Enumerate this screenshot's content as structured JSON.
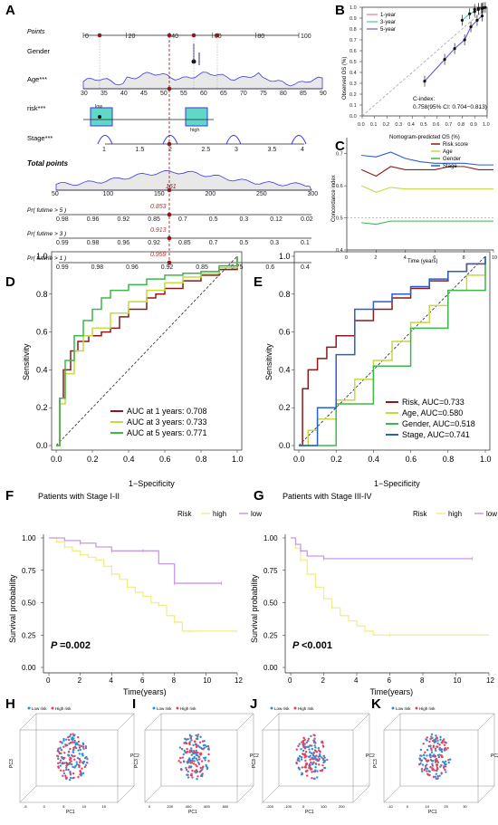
{
  "colors": {
    "red": "#8b1a1a",
    "yellow": "#c8d840",
    "green": "#3cb84a",
    "blue": "#2b5fc8",
    "cyan": "#40c8c0",
    "pink": "#e87a8a",
    "lightyellow": "#f0ee8a",
    "lilac": "#c79ae6",
    "teal": "#5fd8c8",
    "navy": "#2a2a8a"
  },
  "panel_labels": {
    "a": "A",
    "b": "B",
    "c": "C",
    "d": "D",
    "e": "E",
    "f": "F",
    "g": "G",
    "h": "H",
    "i": "I",
    "j": "J",
    "k": "K"
  },
  "chart_data": [
    {
      "panel": "A",
      "type": "table",
      "rows": [
        {
          "label": "Points",
          "ticks": [
            "0",
            "20",
            "40",
            "60",
            "80",
            "100"
          ]
        },
        {
          "label": "Gender",
          "ticks": []
        },
        {
          "label": "Age***",
          "ticks": [
            "30",
            "35",
            "40",
            "45",
            "50",
            "55",
            "60",
            "65",
            "70",
            "75",
            "80",
            "85",
            "90"
          ]
        },
        {
          "label": "risk***",
          "ticks": [
            "low",
            "high"
          ]
        },
        {
          "label": "Stage***",
          "ticks": [
            "1",
            "1.5",
            "2",
            "2.5",
            "3",
            "3.5",
            "4"
          ]
        },
        {
          "label": "Total points",
          "ticks": [
            "50",
            "100",
            "150",
            "200",
            "250",
            "300"
          ]
        },
        {
          "label": "Pr( futime > 5 )",
          "ticks": [
            "0.98",
            "0.96",
            "0.92",
            "0.85",
            "0.7",
            "0.5",
            "0.3",
            "0.12",
            "0.02"
          ]
        },
        {
          "label": "Pr( futime > 3 )",
          "ticks": [
            "0.99",
            "0.98",
            "0.96",
            "0.92",
            "0.85",
            "0.7",
            "0.5",
            "0.3",
            "0.1"
          ]
        },
        {
          "label": "Pr( futime > 1 )",
          "ticks": [
            "0.99",
            "0.98",
            "0.96",
            "0.92",
            "0.85",
            "0.75",
            "0.6",
            "0.4"
          ]
        }
      ],
      "total_value": "161",
      "pred": [
        "0.853",
        "0.913",
        "0.959"
      ]
    },
    {
      "panel": "B",
      "type": "line",
      "xlabel": "Nomogram-predicted OS (%)",
      "ylabel": "Observed OS (%)",
      "xlim": [
        0,
        1
      ],
      "ylim": [
        0,
        1
      ],
      "xticks": [
        "0.0",
        "0.1",
        "0.2",
        "0.3",
        "0.4",
        "0.5",
        "0.6",
        "0.7",
        "0.8",
        "0.9",
        "1.0"
      ],
      "yticks": [
        "0.0",
        "0.1",
        "0.2",
        "0.3",
        "0.4",
        "0.5",
        "0.6",
        "0.7",
        "0.8",
        "0.9",
        "1.0"
      ],
      "legend": [
        "1-year",
        "3-year",
        "5-year"
      ],
      "cindex_title": "C-index:",
      "cindex": "0.758(95% CI: 0.704−0.813)",
      "series": [
        {
          "name": "1-year",
          "x": [
            0.9,
            0.93,
            0.955,
            0.97,
            0.985
          ],
          "y": [
            0.98,
            0.99,
            0.99,
            0.995,
            0.998
          ]
        },
        {
          "name": "3-year",
          "x": [
            0.8,
            0.86,
            0.9,
            0.93,
            0.96
          ],
          "y": [
            0.88,
            0.94,
            0.96,
            0.98,
            0.99
          ]
        },
        {
          "name": "5-year",
          "x": [
            0.5,
            0.66,
            0.74,
            0.82,
            0.87,
            0.92,
            0.96
          ],
          "y": [
            0.32,
            0.52,
            0.62,
            0.7,
            0.82,
            0.88,
            0.92
          ]
        }
      ]
    },
    {
      "panel": "C",
      "type": "line",
      "xlabel": "Time (years)",
      "ylabel": "Concordance index",
      "xlim": [
        0,
        10
      ],
      "ylim": [
        0.4,
        0.75
      ],
      "xticks": [
        "0",
        "2",
        "4",
        "6",
        "8",
        "10"
      ],
      "yticks": [
        "0.4",
        "0.5",
        "0.6",
        "0.7"
      ],
      "x": [
        1,
        2,
        3,
        4,
        5,
        6,
        7,
        8,
        9,
        10
      ],
      "series": [
        {
          "name": "Risk score",
          "values": [
            0.65,
            0.63,
            0.66,
            0.65,
            0.65,
            0.65,
            0.66,
            0.66,
            0.65,
            0.65
          ]
        },
        {
          "name": "Age",
          "values": [
            0.6,
            0.58,
            0.595,
            0.59,
            0.59,
            0.59,
            0.59,
            0.59,
            0.59,
            0.59
          ]
        },
        {
          "name": "Gender",
          "values": [
            0.485,
            0.48,
            0.49,
            0.49,
            0.49,
            0.49,
            0.49,
            0.49,
            0.49,
            0.49
          ]
        },
        {
          "name": "Stage",
          "values": [
            0.695,
            0.69,
            0.705,
            0.685,
            0.675,
            0.67,
            0.67,
            0.67,
            0.665,
            0.665
          ]
        }
      ]
    },
    {
      "panel": "D",
      "type": "line",
      "xlabel": "1−Specificity",
      "ylabel": "Sensitivity",
      "xlim": [
        0,
        1
      ],
      "ylim": [
        0,
        1
      ],
      "xticks": [
        "0.0",
        "0.2",
        "0.4",
        "0.6",
        "0.8",
        "1.0"
      ],
      "yticks": [
        "0.0",
        "0.2",
        "0.4",
        "0.6",
        "0.8",
        "1.0"
      ],
      "series": [
        {
          "name": "AUC at 1 years: 0.708",
          "x": [
            0,
            0.02,
            0.04,
            0.08,
            0.12,
            0.18,
            0.25,
            0.3,
            0.35,
            0.4,
            0.5,
            0.55,
            0.6,
            0.7,
            0.8,
            0.9,
            1
          ],
          "y": [
            0,
            0.25,
            0.4,
            0.5,
            0.55,
            0.58,
            0.6,
            0.62,
            0.68,
            0.72,
            0.78,
            0.8,
            0.83,
            0.87,
            0.9,
            0.93,
            1
          ]
        },
        {
          "name": "AUC at 3 years: 0.733",
          "x": [
            0,
            0.02,
            0.05,
            0.1,
            0.15,
            0.2,
            0.3,
            0.4,
            0.5,
            0.6,
            0.7,
            0.8,
            0.9,
            1
          ],
          "y": [
            0,
            0.22,
            0.38,
            0.5,
            0.58,
            0.62,
            0.7,
            0.76,
            0.82,
            0.86,
            0.89,
            0.91,
            0.94,
            1
          ]
        },
        {
          "name": "AUC at 5 years: 0.771",
          "x": [
            0,
            0.02,
            0.05,
            0.1,
            0.15,
            0.2,
            0.25,
            0.3,
            0.4,
            0.5,
            0.6,
            0.7,
            0.8,
            0.9,
            1
          ],
          "y": [
            0,
            0.25,
            0.45,
            0.58,
            0.66,
            0.72,
            0.78,
            0.82,
            0.85,
            0.88,
            0.9,
            0.91,
            0.92,
            0.95,
            1
          ]
        }
      ]
    },
    {
      "panel": "E",
      "type": "line",
      "xlabel": "1−Specificity",
      "ylabel": "Sensitivity",
      "xlim": [
        0,
        1
      ],
      "ylim": [
        0,
        1
      ],
      "xticks": [
        "0.0",
        "0.2",
        "0.4",
        "0.6",
        "0.8",
        "1.0"
      ],
      "yticks": [
        "0.0",
        "0.2",
        "0.4",
        "0.6",
        "0.8",
        "1.0"
      ],
      "series": [
        {
          "name": "Risk, AUC=0.733",
          "x": [
            0,
            0.02,
            0.05,
            0.1,
            0.15,
            0.2,
            0.3,
            0.4,
            0.5,
            0.6,
            0.7,
            0.8,
            0.9,
            1
          ],
          "y": [
            0,
            0.3,
            0.4,
            0.46,
            0.52,
            0.58,
            0.66,
            0.72,
            0.78,
            0.83,
            0.87,
            0.92,
            0.96,
            1
          ]
        },
        {
          "name": "Age, AUC=0.580",
          "x": [
            0,
            0.05,
            0.1,
            0.2,
            0.3,
            0.4,
            0.5,
            0.6,
            0.7,
            0.8,
            0.9,
            1
          ],
          "y": [
            0,
            0.08,
            0.14,
            0.24,
            0.35,
            0.45,
            0.55,
            0.65,
            0.74,
            0.82,
            0.9,
            1
          ]
        },
        {
          "name": "Gender, AUC=0.518",
          "x": [
            0,
            0.2,
            0.4,
            0.6,
            0.8,
            1
          ],
          "y": [
            0,
            0.22,
            0.42,
            0.62,
            0.82,
            1
          ]
        },
        {
          "name": "Stage, AUC=0.741",
          "x": [
            0,
            0.1,
            0.2,
            0.3,
            0.4,
            0.5,
            0.6,
            0.7,
            0.8,
            0.9,
            1
          ],
          "y": [
            0,
            0.2,
            0.48,
            0.72,
            0.76,
            0.8,
            0.84,
            0.88,
            0.92,
            0.96,
            1
          ]
        }
      ]
    },
    {
      "panel": "F",
      "type": "line",
      "title": "Patients with Stage I-II",
      "xlabel": "Time(years)",
      "ylabel": "Survival probability",
      "legend_title": "Risk",
      "legend": [
        "high",
        "low"
      ],
      "pvalue": "=0.002",
      "xlim": [
        0,
        12
      ],
      "ylim": [
        0,
        1
      ],
      "xticks": [
        "0",
        "2",
        "4",
        "6",
        "8",
        "10",
        "12"
      ],
      "yticks": [
        "0.00",
        "0.25",
        "0.50",
        "0.75",
        "1.00"
      ],
      "series": [
        {
          "name": "high",
          "x": [
            0,
            0.5,
            1,
            1.5,
            2,
            2.5,
            3,
            3.5,
            4,
            4.5,
            5,
            5.5,
            6,
            6.5,
            7,
            7.5,
            8,
            8.5,
            9,
            12
          ],
          "y": [
            1,
            0.97,
            0.93,
            0.9,
            0.87,
            0.85,
            0.83,
            0.78,
            0.72,
            0.68,
            0.62,
            0.58,
            0.55,
            0.5,
            0.48,
            0.4,
            0.35,
            0.28,
            0.28,
            0.28
          ]
        },
        {
          "name": "low",
          "x": [
            0,
            1,
            2,
            3,
            4,
            5,
            6,
            7,
            8,
            9,
            11
          ],
          "y": [
            1,
            0.98,
            0.96,
            0.93,
            0.9,
            0.9,
            0.9,
            0.8,
            0.65,
            0.65,
            0.65
          ]
        }
      ]
    },
    {
      "panel": "G",
      "type": "line",
      "title": "Patients with Stage III-IV",
      "xlabel": "Time(years)",
      "ylabel": "Survival probability",
      "legend_title": "Risk",
      "legend": [
        "high",
        "low"
      ],
      "pvalue": "<0.001",
      "xlim": [
        0,
        12
      ],
      "ylim": [
        0,
        1
      ],
      "xticks": [
        "0",
        "2",
        "4",
        "6",
        "8",
        "10",
        "12"
      ],
      "yticks": [
        "0.00",
        "0.25",
        "0.50",
        "0.75",
        "1.00"
      ],
      "series": [
        {
          "name": "high",
          "x": [
            0,
            0.3,
            0.6,
            1,
            1.5,
            2,
            2.5,
            3,
            3.5,
            4,
            4.5,
            5,
            6,
            12
          ],
          "y": [
            1,
            0.92,
            0.83,
            0.72,
            0.62,
            0.53,
            0.46,
            0.4,
            0.36,
            0.32,
            0.28,
            0.25,
            0.25,
            0.25
          ]
        },
        {
          "name": "low",
          "x": [
            0,
            0.3,
            0.6,
            1,
            2,
            4,
            11
          ],
          "y": [
            1,
            0.95,
            0.9,
            0.86,
            0.84,
            0.84,
            0.84
          ]
        }
      ]
    },
    {
      "panel": "H",
      "type": "scatter",
      "legend": [
        "Low risk",
        "High risk"
      ],
      "axes": [
        "PC1",
        "PC2",
        "PC3"
      ],
      "ticks": [
        "-5",
        "0",
        "5",
        "10",
        "15",
        "-4",
        "0",
        "4",
        "2",
        "-2",
        "-6"
      ]
    },
    {
      "panel": "I",
      "type": "scatter",
      "legend": [
        "Low risk",
        "High risk"
      ],
      "axes": [
        "PC1",
        "PC2",
        "PC3"
      ],
      "ticks": [
        "0",
        "200",
        "400",
        "600",
        "800",
        "1000"
      ]
    },
    {
      "panel": "J",
      "type": "scatter",
      "legend": [
        "Low risk",
        "High risk"
      ],
      "axes": [
        "PC1",
        "PC2",
        "PC3"
      ],
      "ticks": [
        "-200",
        "-100",
        "0",
        "100",
        "200",
        "300"
      ]
    },
    {
      "panel": "K",
      "type": "scatter",
      "legend": [
        "Low risk",
        "High risk"
      ],
      "axes": [
        "PC1",
        "PC2",
        "PC3"
      ],
      "ticks": [
        "-10",
        "0",
        "10",
        "20",
        "30",
        "40",
        "50"
      ]
    }
  ]
}
